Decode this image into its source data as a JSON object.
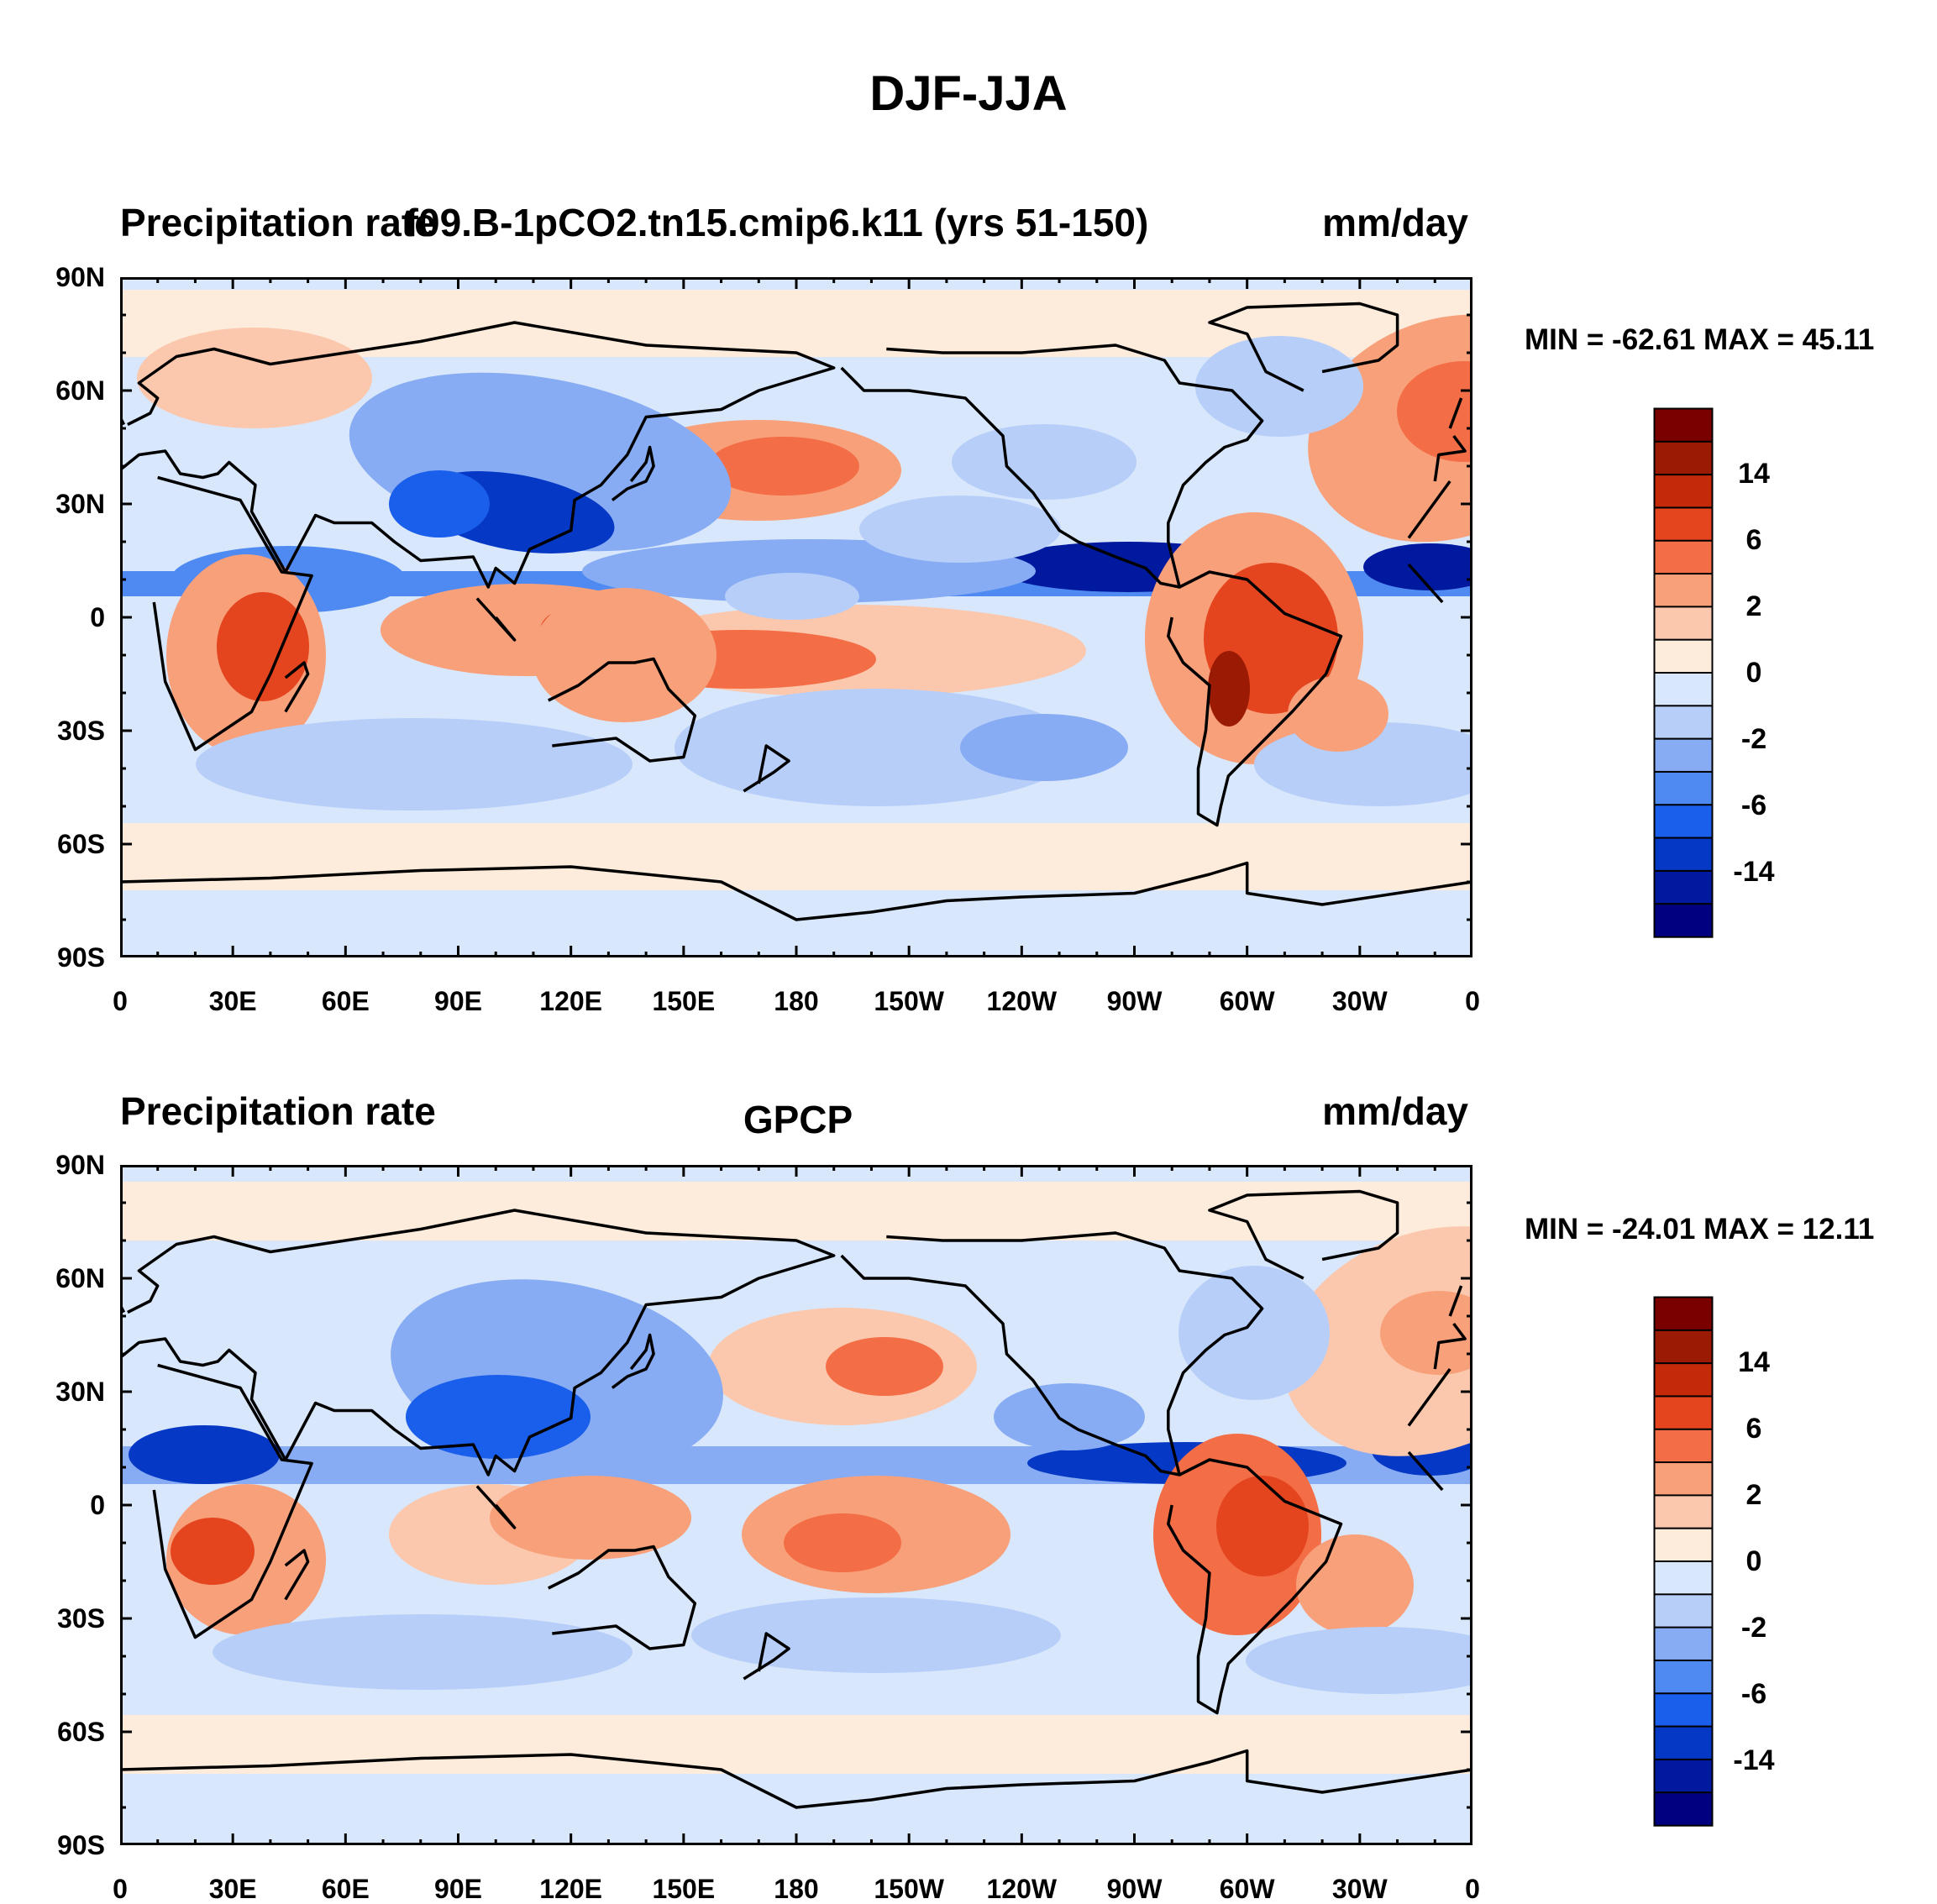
{
  "figure_title": "DJF-JJA",
  "colors": {
    "scale": [
      "#000080",
      "#00199E",
      "#0538C4",
      "#1A5EEC",
      "#4F8AF2",
      "#87ACF3",
      "#B7CEF9",
      "#D8E7FC",
      "#FDEBDB",
      "#FBC8AD",
      "#F8A07A",
      "#F36D46",
      "#E5451E",
      "#C42A0A",
      "#9A1A03",
      "#7A0000"
    ],
    "land_outline": "#000000",
    "background": "#ffffff"
  },
  "panels": [
    {
      "left_title": "Precipitation rate",
      "center_title": "f09.B-1pCO2.tn15.cmip6.k11 (yrs 51-150)",
      "right_title": "mm/day",
      "minmax": "MIN = -62.61 MAX =  45.11"
    },
    {
      "left_title": "Precipitation rate",
      "center_title": "GPCP",
      "right_title": "mm/day",
      "minmax": "MIN = -24.01 MAX =  12.11"
    }
  ],
  "lat_labels": [
    "90N",
    "60N",
    "30N",
    "0",
    "30S",
    "60S",
    "90S"
  ],
  "lon_labels": [
    "0",
    "30E",
    "60E",
    "90E",
    "120E",
    "150E",
    "180",
    "150W",
    "120W",
    "90W",
    "60W",
    "30W",
    "0"
  ],
  "labelbar_labels": [
    "14",
    "6",
    "2",
    "0",
    "-2",
    "-6",
    "-14"
  ],
  "chart_data": {
    "type": "heatmap",
    "title": "DJF-JJA",
    "units": "mm/day",
    "contour_levels": [
      -14,
      -6,
      -2,
      0,
      2,
      6,
      14
    ],
    "x_range": [
      0,
      360
    ],
    "y_range": [
      -90,
      90
    ],
    "panels": [
      {
        "name": "f09.B-1pCO2.tn15.cmip6.k11 (yrs 51-150)",
        "min": -62.61,
        "max": 45.11
      },
      {
        "name": "GPCP",
        "min": -24.01,
        "max": 12.11
      }
    ]
  }
}
